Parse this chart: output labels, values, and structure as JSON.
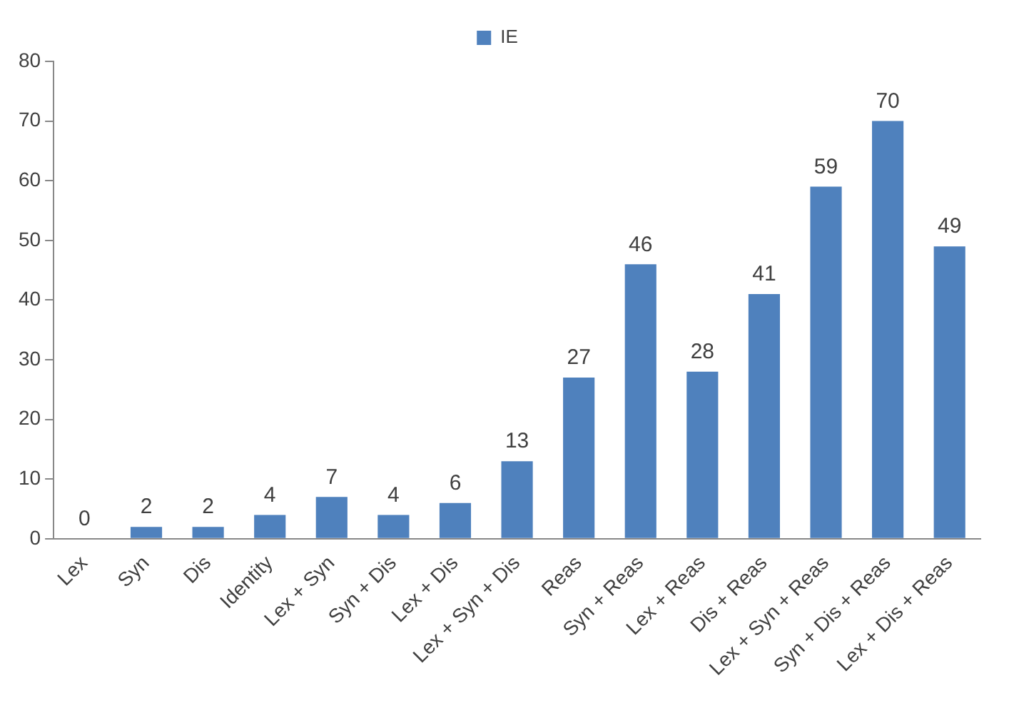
{
  "chart_data": {
    "type": "bar",
    "categories": [
      "Lex",
      "Syn",
      "Dis",
      "Identity",
      "Lex + Syn",
      "Syn + Dis",
      "Lex + Dis",
      "Lex + Syn + Dis",
      "Reas",
      "Syn + Reas",
      "Lex + Reas",
      "Dis + Reas",
      "Lex + Syn + Reas",
      "Syn + Dis + Reas",
      "Lex + Dis + Reas"
    ],
    "series": [
      {
        "name": "IE",
        "color": "#4f81bd",
        "values": [
          0,
          2,
          2,
          4,
          7,
          4,
          6,
          13,
          27,
          46,
          28,
          41,
          59,
          70,
          49
        ]
      }
    ],
    "ylim": [
      0,
      80
    ],
    "yticks": [
      0,
      10,
      20,
      30,
      40,
      50,
      60,
      70,
      80
    ],
    "grid": false,
    "legend": "top",
    "data_labels": true
  }
}
